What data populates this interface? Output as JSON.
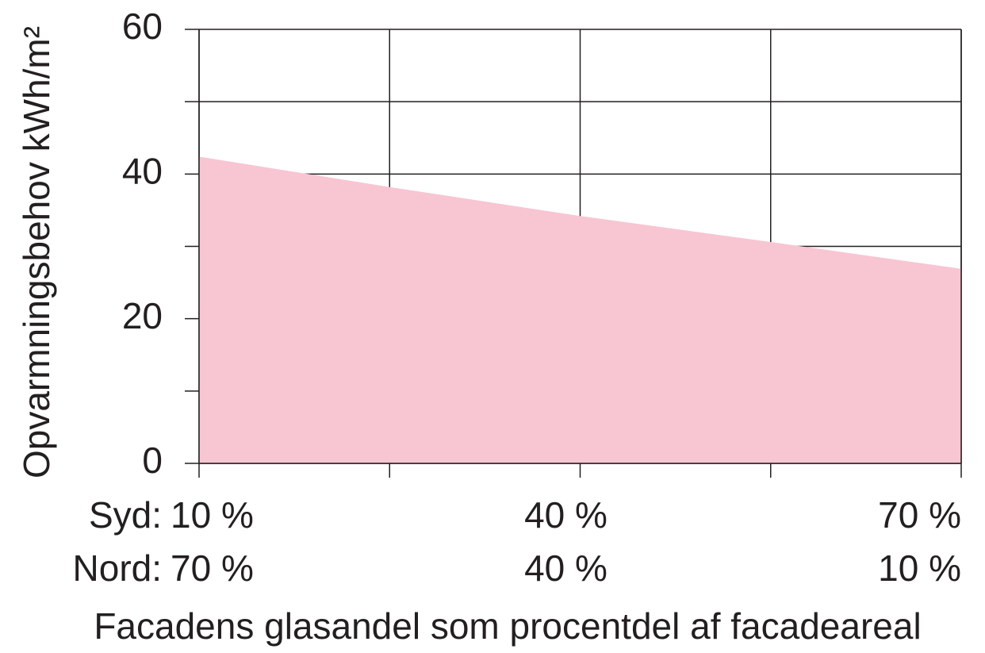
{
  "chart_data": {
    "type": "area",
    "ylabel": "Opvarmningsbehov  kWh/m²",
    "xlabel": "Facadens glasandel som procentdel af facadeareal",
    "x_axis_name": "Syd:",
    "x2_axis_name": "Nord:",
    "x": [
      10,
      25,
      40,
      55,
      70
    ],
    "values": [
      42.4,
      38.2,
      34.2,
      30.6,
      26.9
    ],
    "color": "#f7c6d2",
    "xlim": [
      10,
      70
    ],
    "xticks": [
      {
        "value": 10,
        "label": "10 %"
      },
      {
        "value": 40,
        "label": "40 %"
      },
      {
        "value": 70,
        "label": "70 %"
      }
    ],
    "xminorticks": [
      25,
      55
    ],
    "x2lim": [
      70,
      10
    ],
    "x2ticks": [
      {
        "value": 70,
        "label": "70 %"
      },
      {
        "value": 40,
        "label": "40 %"
      },
      {
        "value": 10,
        "label": "10 %"
      }
    ],
    "ylim": [
      0,
      60
    ],
    "yticks": [
      0,
      20,
      40,
      60
    ],
    "yminorticks": [
      10,
      30,
      50
    ],
    "grid": true
  }
}
